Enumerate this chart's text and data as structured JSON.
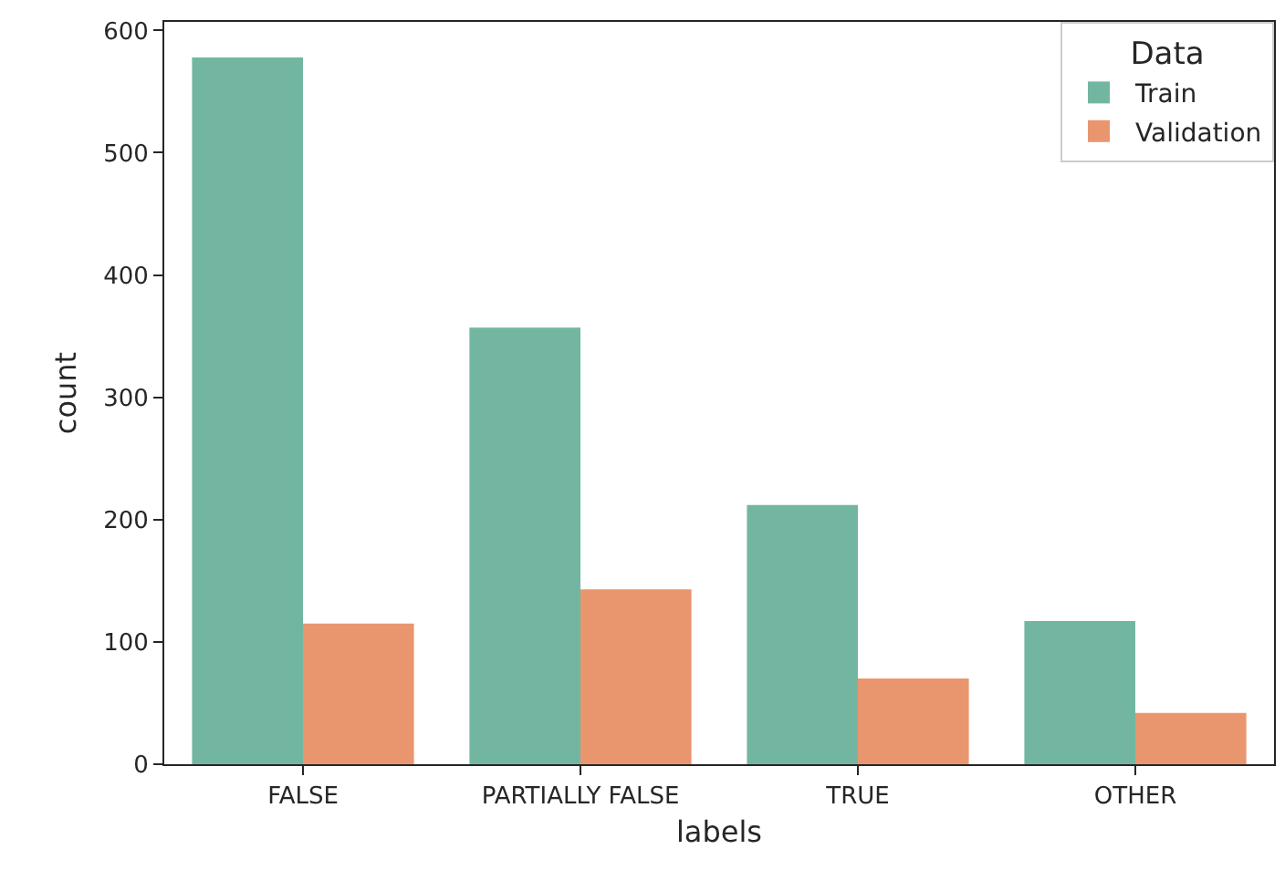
{
  "chart_data": {
    "type": "bar",
    "xlabel": "labels",
    "ylabel": "count",
    "legend_title": "Data",
    "categories": [
      "FALSE",
      "PARTIALLY FALSE",
      "TRUE",
      "OTHER"
    ],
    "series": [
      {
        "name": "Train",
        "color": "#72b6a1",
        "values": [
          578,
          357,
          212,
          117
        ]
      },
      {
        "name": "Validation",
        "color": "#e9966f",
        "values": [
          115,
          143,
          70,
          42
        ]
      }
    ],
    "ylim": [
      0,
      607
    ],
    "yticks": [
      0,
      100,
      200,
      300,
      400,
      500,
      600
    ],
    "grid": false,
    "legend": "top right"
  }
}
